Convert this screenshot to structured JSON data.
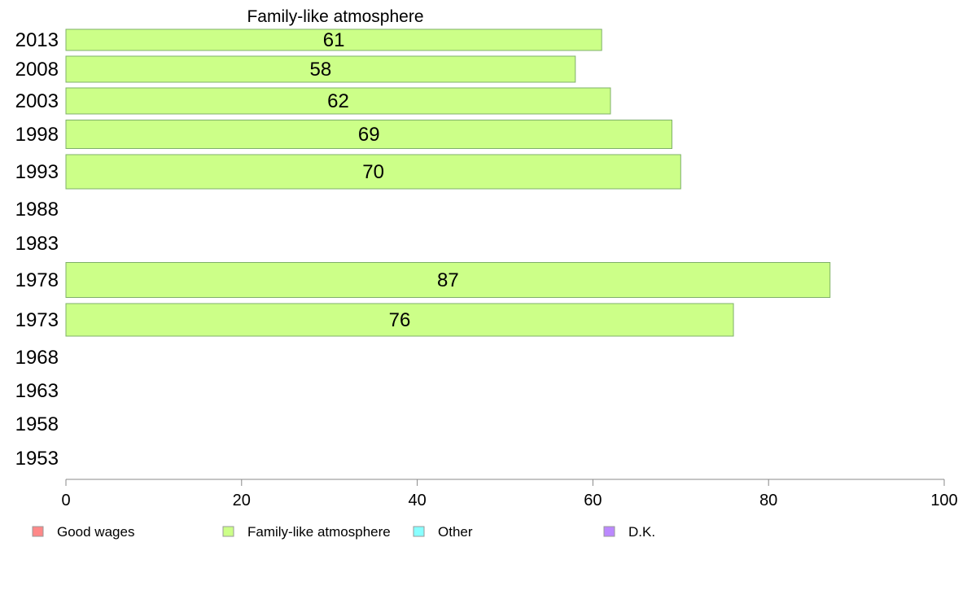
{
  "chart_data": {
    "type": "bar",
    "orientation": "horizontal",
    "title": "Family-like atmosphere",
    "categories": [
      "2013",
      "2008",
      "2003",
      "1998",
      "1993",
      "1988",
      "1983",
      "1978",
      "1973",
      "1968",
      "1963",
      "1958",
      "1953"
    ],
    "series": [
      {
        "name": "Family-like atmosphere",
        "color": "#ccff88",
        "values": [
          61,
          58,
          62,
          69,
          70,
          null,
          null,
          87,
          76,
          null,
          null,
          null,
          null
        ]
      }
    ],
    "xlim": [
      0,
      100
    ],
    "xticks": [
      0,
      20,
      40,
      60,
      80,
      100
    ],
    "grid": false,
    "legend_placement": "bottom",
    "legend": [
      {
        "label": "Good wages",
        "color": "#ff8888"
      },
      {
        "label": "Family-like atmosphere",
        "color": "#ccff88"
      },
      {
        "label": "Other",
        "color": "#88ffff"
      },
      {
        "label": "D.K.",
        "color": "#bb88ff"
      }
    ]
  }
}
